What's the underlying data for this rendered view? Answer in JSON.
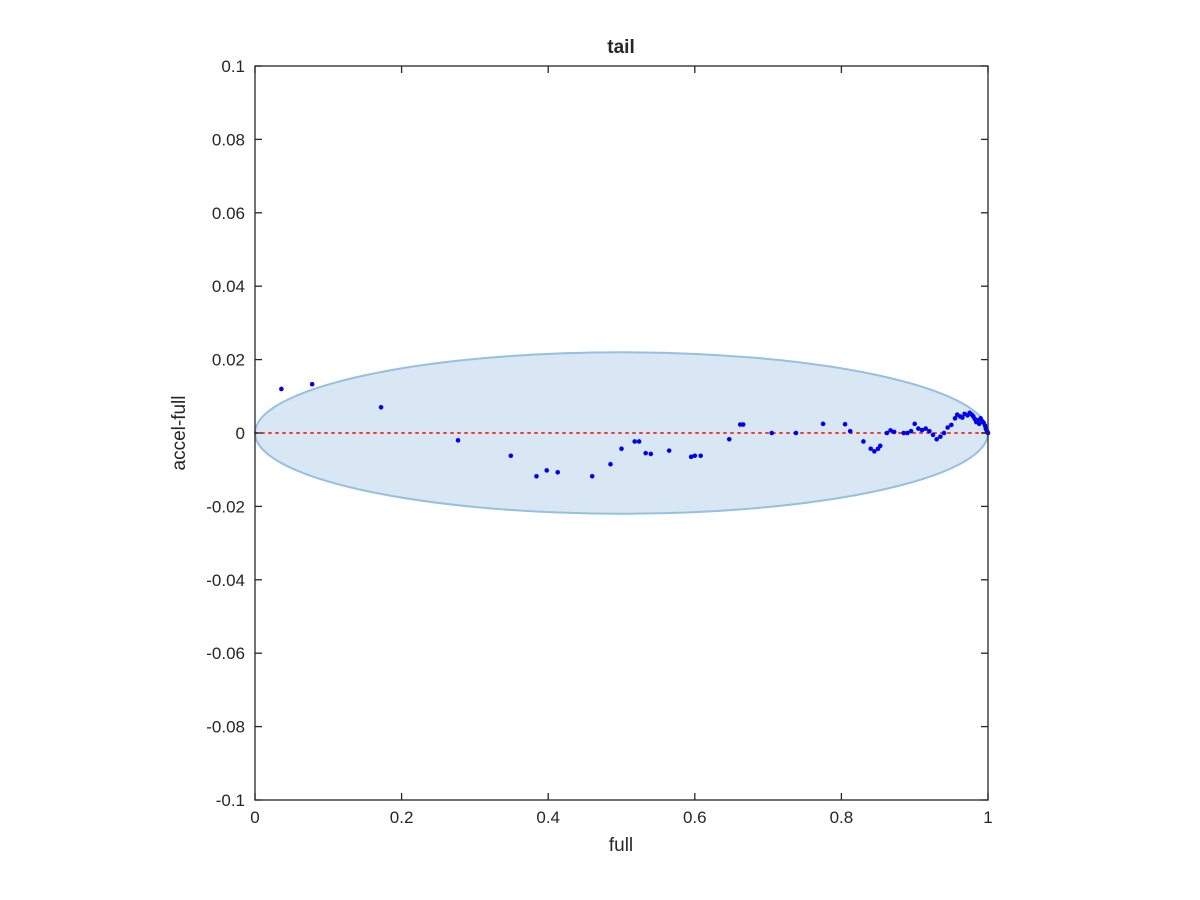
{
  "chart_data": {
    "type": "scatter",
    "title": "tail",
    "xlabel": "full",
    "ylabel": "accel-full",
    "xlim": [
      0,
      1
    ],
    "ylim": [
      -0.1,
      0.1
    ],
    "grid": false,
    "box": true,
    "x_ticks": [
      0,
      0.2,
      0.4,
      0.6,
      0.8,
      1
    ],
    "x_tick_labels": [
      "0",
      "0.2",
      "0.4",
      "0.6",
      "0.8",
      "1"
    ],
    "y_ticks": [
      0.1,
      0.08,
      0.06,
      0.04,
      0.02,
      0,
      -0.02,
      -0.04,
      -0.06,
      -0.08,
      -0.1
    ],
    "y_tick_labels": [
      "0.1",
      "0.08",
      "0.06",
      "0.04",
      "0.02",
      "0",
      "-0.02",
      "-0.04",
      "-0.06",
      "-0.08",
      "-0.1"
    ],
    "ellipse": {
      "center": [
        0.5,
        0
      ],
      "x_radius": 0.5,
      "y_radius": 0.022,
      "fill": "#d8e7f3",
      "stroke": "#95c1df"
    },
    "reference_line": {
      "y": 0,
      "color": "#e8403a",
      "style": "dotted"
    },
    "point_color": "#0000ee",
    "points": [
      [
        0.036,
        0.012
      ],
      [
        0.078,
        0.0133
      ],
      [
        0.172,
        0.007
      ],
      [
        0.277,
        -0.002
      ],
      [
        0.349,
        -0.0062
      ],
      [
        0.384,
        -0.0118
      ],
      [
        0.398,
        -0.0102
      ],
      [
        0.413,
        -0.0107
      ],
      [
        0.46,
        -0.0118
      ],
      [
        0.485,
        -0.0085
      ],
      [
        0.5,
        -0.0043
      ],
      [
        0.518,
        -0.0023
      ],
      [
        0.524,
        -0.0023
      ],
      [
        0.533,
        -0.0055
      ],
      [
        0.54,
        -0.0057
      ],
      [
        0.565,
        -0.0048
      ],
      [
        0.595,
        -0.0065
      ],
      [
        0.6,
        -0.0062
      ],
      [
        0.608,
        -0.0062
      ],
      [
        0.647,
        -0.0017
      ],
      [
        0.662,
        0.0023
      ],
      [
        0.666,
        0.0023
      ],
      [
        0.705,
        0.0
      ],
      [
        0.738,
        0.0
      ],
      [
        0.775,
        0.0025
      ],
      [
        0.805,
        0.0024
      ],
      [
        0.812,
        0.0005
      ],
      [
        0.83,
        -0.0023
      ],
      [
        0.84,
        -0.0043
      ],
      [
        0.845,
        -0.005
      ],
      [
        0.85,
        -0.0043
      ],
      [
        0.853,
        -0.0035
      ],
      [
        0.862,
        0.0
      ],
      [
        0.867,
        0.0007
      ],
      [
        0.872,
        0.0003
      ],
      [
        0.885,
        0.0
      ],
      [
        0.89,
        0.0
      ],
      [
        0.895,
        0.0005
      ],
      [
        0.9,
        0.0025
      ],
      [
        0.905,
        0.0012
      ],
      [
        0.91,
        0.0008
      ],
      [
        0.915,
        0.0012
      ],
      [
        0.92,
        0.0005
      ],
      [
        0.925,
        -0.0005
      ],
      [
        0.93,
        -0.0017
      ],
      [
        0.935,
        -0.001
      ],
      [
        0.94,
        0.0
      ],
      [
        0.945,
        0.0015
      ],
      [
        0.95,
        0.0022
      ],
      [
        0.955,
        0.004
      ],
      [
        0.958,
        0.005
      ],
      [
        0.962,
        0.0045
      ],
      [
        0.965,
        0.0042
      ],
      [
        0.968,
        0.0052
      ],
      [
        0.972,
        0.0048
      ],
      [
        0.975,
        0.0055
      ],
      [
        0.978,
        0.005
      ],
      [
        0.98,
        0.0045
      ],
      [
        0.982,
        0.0038
      ],
      [
        0.984,
        0.003
      ],
      [
        0.986,
        0.0035
      ],
      [
        0.988,
        0.0025
      ],
      [
        0.99,
        0.004
      ],
      [
        0.992,
        0.0032
      ],
      [
        0.994,
        0.0028
      ],
      [
        0.996,
        0.002
      ],
      [
        0.997,
        0.0012
      ],
      [
        0.998,
        0.0008
      ],
      [
        0.999,
        0.0004
      ],
      [
        1.0,
        0.0
      ]
    ]
  }
}
